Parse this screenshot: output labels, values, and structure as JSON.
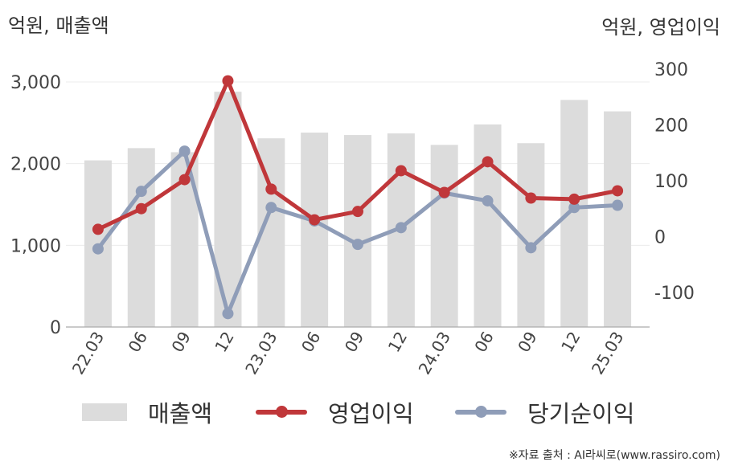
{
  "header": {
    "left_unit": "억원, 매출액",
    "right_unit": "억원, 영업이익"
  },
  "legend": {
    "sales": "매출액",
    "op": "영업이익",
    "net": "당기순이익"
  },
  "source": "※자료 출처 : AI라씨로(www.rassiro.com)",
  "colors": {
    "sales": "#dcdcdc",
    "op": "#c0373a",
    "net": "#8f9db8"
  },
  "chart_data": {
    "type": "bar",
    "categories": [
      "22.03",
      "06",
      "09",
      "12",
      "23.03",
      "06",
      "09",
      "12",
      "24.03",
      "06",
      "09",
      "12",
      "25.03"
    ],
    "series": [
      {
        "name": "매출액",
        "type": "bar",
        "axis": "left",
        "values": [
          2040,
          2190,
          2140,
          2880,
          2310,
          2380,
          2350,
          2370,
          2230,
          2480,
          2250,
          2780,
          2640
        ]
      },
      {
        "name": "영업이익",
        "type": "line",
        "axis": "right",
        "values": [
          13,
          50,
          102,
          279,
          85,
          30,
          45,
          118,
          79,
          134,
          69,
          67,
          82
        ]
      },
      {
        "name": "당기순이익",
        "type": "line",
        "axis": "right",
        "values": [
          -22,
          81,
          153,
          -138,
          52,
          28,
          -14,
          16,
          78,
          64,
          -20,
          52,
          56
        ]
      }
    ],
    "left_axis": {
      "ticks": [
        "0",
        "1,000",
        "2,000",
        "3,000"
      ],
      "tick_values": [
        0,
        1000,
        2000,
        3000
      ],
      "range": [
        0,
        3000
      ]
    },
    "right_axis": {
      "ticks": [
        "-100",
        "0",
        "100",
        "200",
        "300"
      ],
      "tick_values": [
        -100,
        0,
        100,
        200,
        300
      ],
      "range": [
        -162,
        300
      ]
    },
    "grid": true,
    "legend_position": "bottom"
  }
}
